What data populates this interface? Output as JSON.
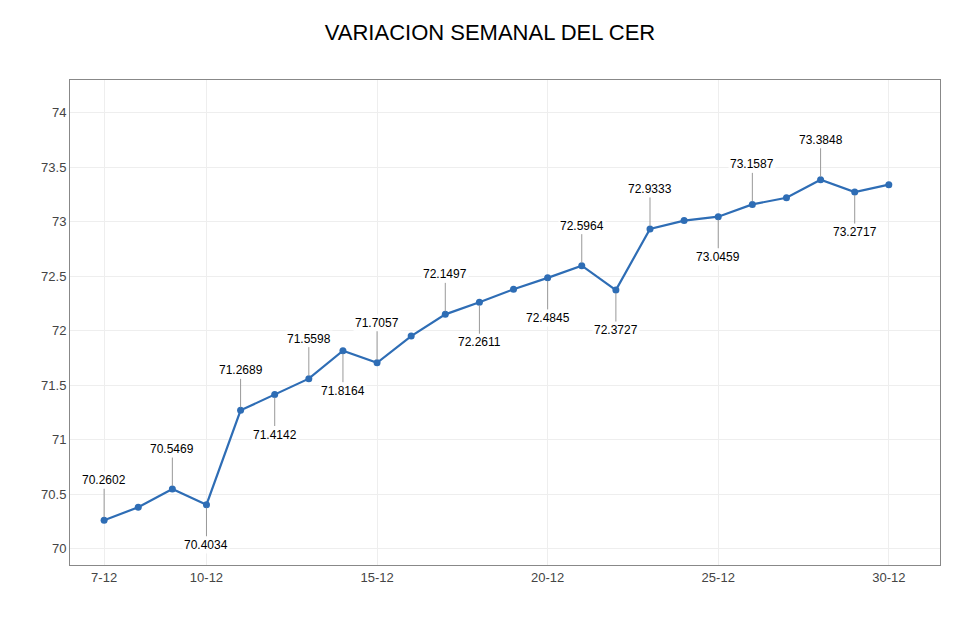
{
  "chart_data": {
    "type": "line",
    "title": "VARIACION SEMANAL DEL CER",
    "x": [
      1,
      2,
      3,
      4,
      5,
      6,
      7,
      8,
      9,
      10,
      11,
      12,
      13,
      14,
      15,
      16,
      17,
      18,
      19,
      20,
      21,
      22,
      23,
      24
    ],
    "values": [
      70.2602,
      70.38,
      70.5469,
      70.4034,
      71.2689,
      71.4142,
      71.5598,
      71.8164,
      71.7057,
      71.95,
      72.1497,
      72.2611,
      72.38,
      72.4845,
      72.5964,
      72.3727,
      72.9333,
      73.01,
      73.0459,
      73.1587,
      73.22,
      73.3848,
      73.2717,
      73.34
    ],
    "color": "#2e6db5",
    "marker": "circle",
    "line_style": "solid",
    "xlim": [
      0.0,
      25.5
    ],
    "xticks": [
      {
        "value": 1,
        "label": "7-12"
      },
      {
        "value": 4,
        "label": "10-12"
      },
      {
        "value": 9,
        "label": "15-12"
      },
      {
        "value": 14,
        "label": "20-12"
      },
      {
        "value": 19,
        "label": "25-12"
      },
      {
        "value": 24,
        "label": "30-12"
      }
    ],
    "ylim": [
      69.85,
      74.3
    ],
    "yticks": [
      70,
      70.5,
      71,
      71.5,
      72,
      72.5,
      73,
      73.5,
      74
    ],
    "grid": true,
    "annotations": [
      {
        "text": "70.2602",
        "x": 1,
        "y": 70.2602
      },
      {
        "text": "70.5469",
        "x": 3,
        "y": 70.5469
      },
      {
        "text": "70.4034",
        "x": 4,
        "y": 70.4034
      },
      {
        "text": "71.2689",
        "x": 5,
        "y": 71.2689
      },
      {
        "text": "71.4142",
        "x": 6,
        "y": 71.4142
      },
      {
        "text": "71.5598",
        "x": 7,
        "y": 71.5598
      },
      {
        "text": "71.8164",
        "x": 8,
        "y": 71.8164
      },
      {
        "text": "71.7057",
        "x": 9,
        "y": 71.7057
      },
      {
        "text": "72.1497",
        "x": 11,
        "y": 72.1497
      },
      {
        "text": "72.2611",
        "x": 12,
        "y": 72.2611
      },
      {
        "text": "72.4845",
        "x": 14,
        "y": 72.4845
      },
      {
        "text": "72.5964",
        "x": 15,
        "y": 72.5964
      },
      {
        "text": "72.3727",
        "x": 16,
        "y": 72.3727
      },
      {
        "text": "72.9333",
        "x": 17,
        "y": 72.9333
      },
      {
        "text": "73.0459",
        "x": 19,
        "y": 73.0459
      },
      {
        "text": "73.1587",
        "x": 20,
        "y": 73.1587
      },
      {
        "text": "73.3848",
        "x": 22,
        "y": 73.3848
      },
      {
        "text": "73.2717",
        "x": 23,
        "y": 73.2717
      }
    ]
  }
}
